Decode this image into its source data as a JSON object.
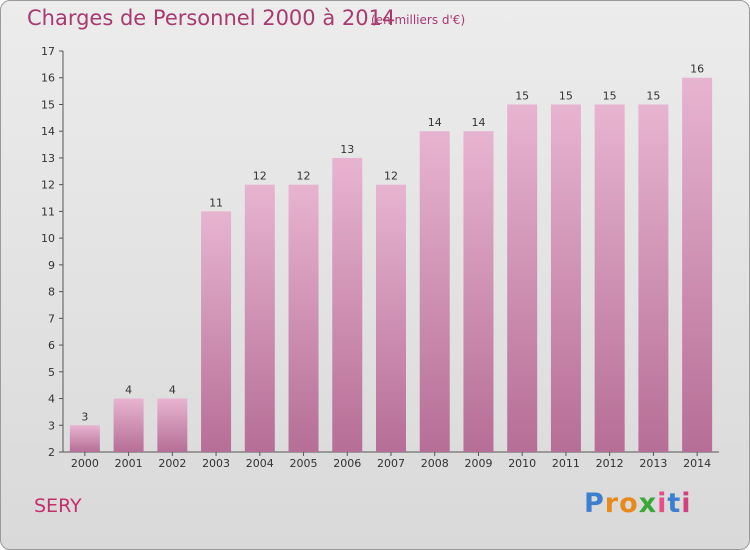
{
  "title": "Charges de Personnel 2000 à 2014",
  "unit_label": "(en milliers d'€)",
  "city": "SERY",
  "logo": {
    "text": "Proxiti",
    "letters": [
      "P",
      "r",
      "o",
      "x",
      "i",
      "t",
      "i"
    ],
    "colors": [
      "#3c7fcf",
      "#e8891c",
      "#e8891c",
      "#3aa837",
      "#e84d8a",
      "#3c7fcf",
      "#d3407f"
    ]
  },
  "colors": {
    "title": "#a73a6f",
    "bar_top": "#e7b4d0",
    "bar_bottom": "#b66e96",
    "background": "#e3e3e3"
  },
  "chart_data": {
    "type": "bar",
    "categories": [
      "2000",
      "2001",
      "2002",
      "2003",
      "2004",
      "2005",
      "2006",
      "2007",
      "2008",
      "2009",
      "2010",
      "2011",
      "2012",
      "2013",
      "2014"
    ],
    "values": [
      3,
      4,
      4,
      11,
      12,
      12,
      13,
      12,
      14,
      14,
      15,
      15,
      15,
      15,
      16
    ],
    "yticks": [
      "2",
      "3",
      "4",
      "5",
      "6",
      "7",
      "8",
      "9",
      "10",
      "11",
      "12",
      "13",
      "14",
      "15",
      "16",
      "17"
    ],
    "ylim": [
      2,
      17
    ],
    "title": "Charges de Personnel 2000 à 2014",
    "xlabel": "",
    "ylabel": "",
    "grid": false,
    "legend": "none"
  }
}
